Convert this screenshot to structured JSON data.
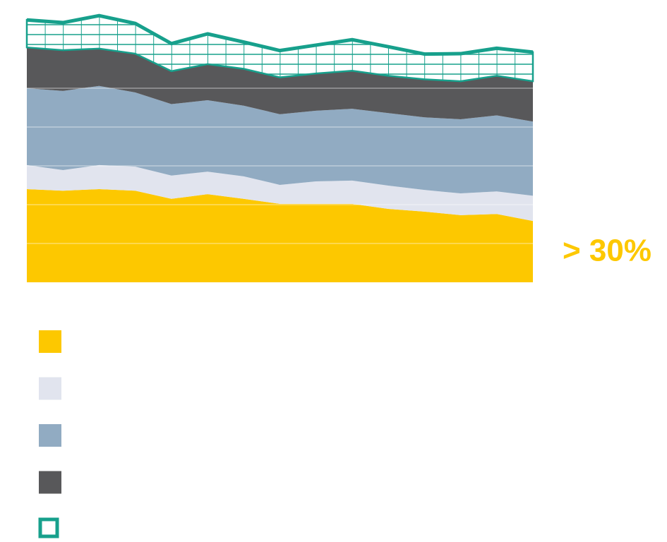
{
  "chart_data": {
    "type": "stacked-area",
    "annotation": "> 30%",
    "categories": [
      null,
      null,
      null,
      null,
      null,
      null,
      null,
      null,
      null,
      null,
      null,
      null,
      null,
      null,
      null
    ],
    "series": [
      {
        "color": "#fdc800",
        "values": [
          24.0,
          23.6,
          24.0,
          23.6,
          21.5,
          22.7,
          21.5,
          20.2,
          20.2,
          20.2,
          18.9,
          18.2,
          17.3,
          17.6,
          15.8
        ]
      },
      {
        "color": "#e1e4ee",
        "values": [
          6.2,
          5.3,
          6.2,
          6.2,
          6.0,
          5.8,
          5.8,
          4.9,
          5.8,
          6.0,
          6.0,
          5.6,
          5.6,
          5.8,
          6.5
        ]
      },
      {
        "color": "#91abc2",
        "values": [
          19.8,
          20.4,
          20.4,
          19.1,
          18.4,
          18.4,
          18.2,
          18.2,
          18.2,
          18.5,
          18.7,
          18.7,
          19.1,
          19.6,
          19.1
        ]
      },
      {
        "color": "#58585a",
        "values": [
          10.5,
          10.5,
          9.6,
          10.0,
          8.5,
          9.3,
          9.5,
          9.5,
          9.6,
          9.8,
          9.6,
          9.8,
          9.8,
          10.2,
          10.4
        ]
      },
      {
        "color": "#17a08c",
        "hatch": true,
        "values": [
          7.1,
          7.1,
          8.5,
          7.8,
          7.1,
          7.8,
          6.9,
          6.9,
          7.3,
          8.0,
          7.5,
          6.5,
          7.1,
          7.1,
          7.5
        ]
      }
    ],
    "ylim": [
      0,
      70
    ],
    "yticks": [
      10,
      20,
      30,
      40,
      50
    ],
    "grid": true
  }
}
